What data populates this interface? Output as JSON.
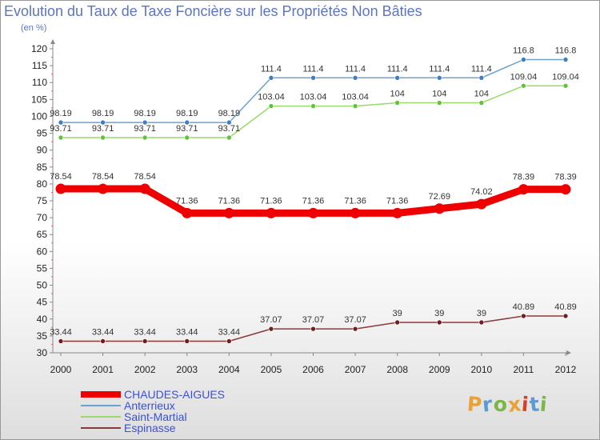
{
  "title": "Evolution du Taux de Taxe Foncière sur les Propriétés Non Bâties",
  "subtitle": "(en %)",
  "logo": {
    "text": "Proxiti",
    "colors": [
      "#e8a23a",
      "#5b9bd5",
      "#7ab648",
      "#e8a23a",
      "#d6402b",
      "#5b9bd5",
      "#7ab648"
    ]
  },
  "chart_data": {
    "type": "line",
    "title": "Evolution du Taux de Taxe Foncière sur les Propriétés Non Bâties",
    "ylabel": "(en %)",
    "xlabel": "",
    "ylim": [
      30,
      120
    ],
    "yticks": [
      30,
      35,
      40,
      45,
      50,
      55,
      60,
      65,
      70,
      75,
      80,
      85,
      90,
      95,
      100,
      105,
      110,
      115,
      120
    ],
    "grid": false,
    "legend_position": "bottom-left",
    "x": [
      "2000",
      "2001",
      "2002",
      "2003",
      "2004",
      "2005",
      "2006",
      "2007",
      "2008",
      "2009",
      "2010",
      "2011",
      "2012"
    ],
    "series": [
      {
        "name": "CHAUDES-AIGUES",
        "color": "#ee0000",
        "style": "thick",
        "values": [
          78.54,
          78.54,
          78.54,
          71.36,
          71.36,
          71.36,
          71.36,
          71.36,
          71.36,
          72.69,
          74.02,
          78.39,
          78.39
        ],
        "labels": [
          "78.54",
          "78.54",
          "78.54",
          "71.36",
          "71.36",
          "71.36",
          "71.36",
          "71.36",
          "71.36",
          "72.69",
          "74.02",
          "78.39",
          "78.39"
        ]
      },
      {
        "name": "Anterrieux",
        "color": "#6fa1d0",
        "marker_color": "#3f7fc0",
        "style": "thin",
        "values": [
          98.19,
          98.19,
          98.19,
          98.19,
          98.19,
          111.4,
          111.4,
          111.4,
          111.4,
          111.4,
          111.4,
          116.8,
          116.8
        ],
        "labels": [
          "98.19",
          "98.19",
          "98.19",
          "98.19",
          "98.19",
          "111.4",
          "111.4",
          "111.4",
          "111.4",
          "111.4",
          "111.4",
          "116.8",
          "116.8"
        ]
      },
      {
        "name": "Saint-Martial",
        "color": "#9ad96a",
        "marker_color": "#62c23a",
        "style": "thin",
        "values": [
          93.71,
          93.71,
          93.71,
          93.71,
          93.71,
          103.04,
          103.04,
          103.04,
          104,
          104,
          104,
          109.04,
          109.04
        ],
        "labels": [
          "93.71",
          "93.71",
          "93.71",
          "93.71",
          "93.71",
          "103.04",
          "103.04",
          "103.04",
          "104",
          "104",
          "104",
          "109.04",
          "109.04"
        ]
      },
      {
        "name": "Espinasse",
        "color": "#8a3a3a",
        "marker_color": "#6e2020",
        "style": "thin",
        "values": [
          33.44,
          33.44,
          33.44,
          33.44,
          33.44,
          37.07,
          37.07,
          37.07,
          39,
          39,
          39,
          40.89,
          40.89
        ],
        "labels": [
          "33.44",
          "33.44",
          "33.44",
          "33.44",
          "33.44",
          "37.07",
          "37.07",
          "37.07",
          "39",
          "39",
          "39",
          "40.89",
          "40.89"
        ]
      }
    ]
  }
}
